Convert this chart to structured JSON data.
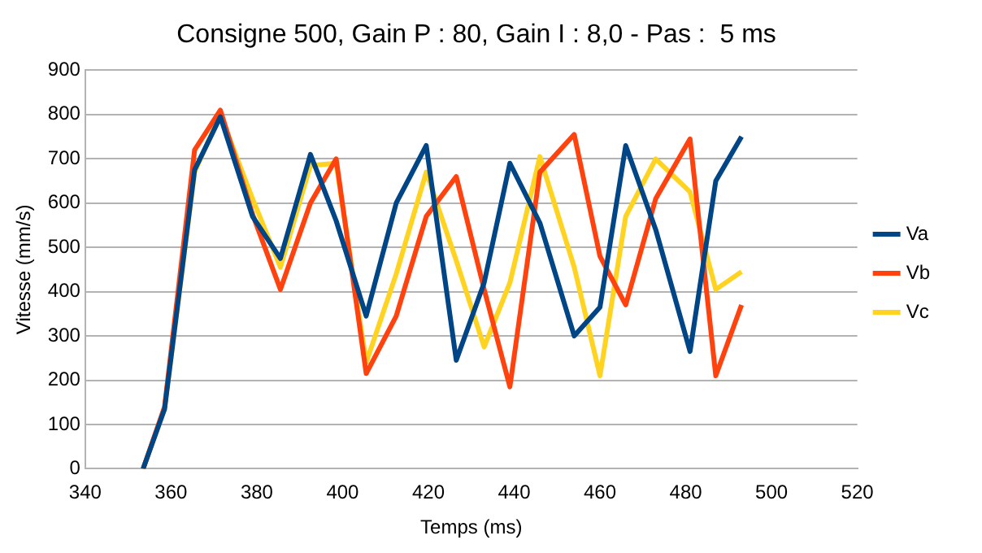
{
  "chart_data": {
    "type": "line",
    "title": "Consigne 500, Gain P : 80, Gain I : 8,0 - Pas :  5 ms",
    "xlabel": "Temps (ms)",
    "ylabel": "Vitesse (mm/s)",
    "x": [
      353.5,
      358.5,
      365.5,
      371.5,
      379,
      385.5,
      392.5,
      398.5,
      405.5,
      412.5,
      419.5,
      426.5,
      433,
      439,
      446,
      454,
      460,
      466,
      473,
      481,
      487,
      493
    ],
    "series": [
      {
        "name": "Va",
        "color": "#004586",
        "values": [
          0,
          135,
          675,
          795,
          570,
          475,
          710,
          560,
          345,
          600,
          730,
          245,
          420,
          690,
          555,
          300,
          365,
          730,
          540,
          265,
          650,
          750
        ]
      },
      {
        "name": "Vb",
        "color": "#ff420e",
        "values": [
          0,
          140,
          720,
          810,
          575,
          405,
          600,
          700,
          215,
          345,
          570,
          660,
          405,
          185,
          670,
          755,
          480,
          370,
          610,
          745,
          210,
          370
        ]
      },
      {
        "name": "Vc",
        "color": "#ffd320",
        "values": [
          0,
          135,
          670,
          800,
          610,
          455,
          685,
          690,
          240,
          440,
          670,
          470,
          275,
          420,
          705,
          455,
          210,
          570,
          700,
          625,
          405,
          445
        ]
      }
    ],
    "xlim": [
      340,
      520
    ],
    "xticks": [
      340,
      360,
      380,
      400,
      420,
      440,
      460,
      480,
      500,
      520
    ],
    "ylim": [
      0,
      900
    ],
    "yticks": [
      0,
      100,
      200,
      300,
      400,
      500,
      600,
      700,
      800,
      900
    ],
    "grid": "y",
    "legend": "right",
    "marker": "none",
    "line_style": "solid"
  }
}
